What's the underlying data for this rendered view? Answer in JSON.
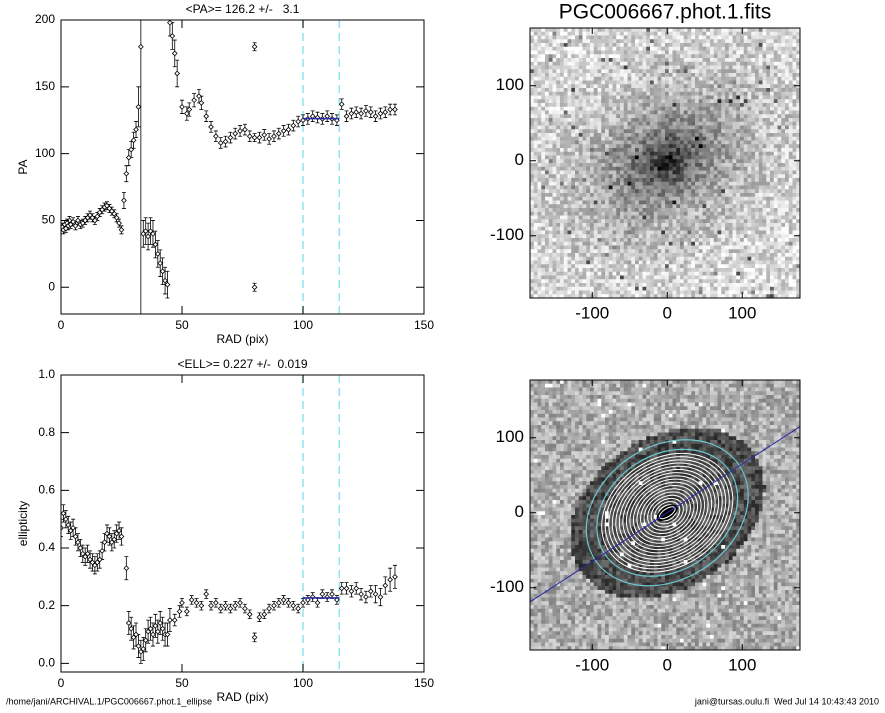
{
  "chart_data": [
    {
      "type": "errorbar",
      "title": "<PA>= 126.2 +/-   3.1",
      "xlabel": "RAD (pix)",
      "ylabel": "PA",
      "x": [
        0.5,
        1,
        1.5,
        2,
        2.5,
        3,
        3.5,
        4,
        5,
        6,
        7,
        8,
        9,
        10,
        11,
        12,
        13,
        14,
        15,
        16,
        17,
        18,
        19,
        20,
        21,
        22,
        23,
        24,
        25,
        26,
        27,
        28,
        29,
        30,
        31,
        32,
        33,
        34,
        35,
        36,
        37,
        38,
        39,
        40,
        41,
        42,
        43,
        44,
        45,
        46,
        47,
        48,
        50,
        52,
        53,
        55,
        57,
        58,
        60,
        62,
        64,
        66,
        68,
        70,
        72,
        74,
        76,
        78,
        80,
        80,
        80,
        82,
        84,
        86,
        88,
        90,
        92,
        94,
        96,
        98,
        100,
        102,
        104,
        106,
        108,
        110,
        112,
        114,
        116,
        118,
        120,
        122,
        124,
        126,
        128,
        130,
        132,
        134,
        136,
        138
      ],
      "values": [
        45,
        43,
        47,
        44,
        48,
        46,
        50,
        47,
        49,
        46,
        50,
        47,
        48,
        50,
        52,
        54,
        52,
        50,
        53,
        56,
        58,
        60,
        61,
        59,
        57,
        55,
        52,
        48,
        43,
        65,
        85,
        97,
        103,
        110,
        118,
        135,
        180,
        40,
        42,
        38,
        42,
        40,
        32,
        25,
        18,
        12,
        5,
        2,
        198,
        188,
        175,
        160,
        135,
        130,
        133,
        140,
        143,
        138,
        128,
        120,
        113,
        108,
        109,
        112,
        115,
        117,
        118,
        113,
        180,
        0,
        112,
        112,
        114,
        111,
        113,
        115,
        117,
        118,
        121,
        124,
        125,
        126,
        128,
        127,
        126,
        128,
        126,
        125,
        137,
        128,
        130,
        131,
        130,
        132,
        131,
        128,
        130,
        131,
        133,
        133
      ],
      "errors": [
        3,
        3,
        3,
        3,
        3,
        3,
        3,
        3,
        3,
        3,
        3,
        3,
        3,
        3,
        3,
        3,
        3,
        3,
        3,
        3,
        3,
        3,
        3,
        3,
        3,
        3,
        3,
        3,
        3,
        6,
        6,
        6,
        6,
        6,
        6,
        15,
        200,
        10,
        10,
        10,
        10,
        10,
        10,
        10,
        10,
        10,
        10,
        10,
        10,
        10,
        10,
        10,
        5,
        5,
        5,
        5,
        5,
        5,
        4,
        4,
        4,
        4,
        4,
        4,
        4,
        4,
        4,
        4,
        3,
        3,
        3,
        4,
        4,
        4,
        4,
        4,
        4,
        4,
        4,
        4,
        4,
        4,
        4,
        4,
        4,
        4,
        4,
        4,
        4,
        4,
        4,
        4,
        4,
        4,
        4,
        4,
        4,
        4,
        4,
        4
      ],
      "xlim": [
        0,
        150
      ],
      "ylim": [
        -20,
        200
      ],
      "xticks": [
        0,
        50,
        100,
        150
      ],
      "yticks": [
        0,
        50,
        100,
        150,
        200
      ],
      "vlines": [
        100,
        115
      ],
      "vline_color": "#8fe6f0",
      "fit_value": 126.2,
      "fit_range": [
        100,
        115
      ],
      "fit_color": "#2a2aa8",
      "color": "#000000"
    },
    {
      "type": "errorbar",
      "title": "<ELL>= 0.227 +/-  0.019",
      "xlabel": "RAD (pix)",
      "ylabel": "ellipticity",
      "x": [
        0,
        1,
        2,
        3,
        4,
        5,
        6,
        7,
        8,
        9,
        10,
        11,
        12,
        13,
        14,
        15,
        16,
        17,
        18,
        19,
        20,
        21,
        22,
        23,
        24,
        25,
        27,
        28,
        29,
        30,
        31,
        32,
        33,
        34,
        35,
        36,
        37,
        38,
        39,
        40,
        41,
        42,
        43,
        44,
        45,
        47,
        49,
        50,
        52,
        54,
        56,
        58,
        60,
        62,
        64,
        66,
        68,
        70,
        72,
        74,
        76,
        78,
        80,
        82,
        84,
        86,
        88,
        90,
        92,
        94,
        96,
        98,
        100,
        102,
        104,
        106,
        108,
        110,
        112,
        114,
        116,
        118,
        120,
        122,
        124,
        126,
        128,
        130,
        132,
        134,
        136,
        138
      ],
      "values": [
        0.47,
        0.52,
        0.5,
        0.48,
        0.46,
        0.47,
        0.44,
        0.42,
        0.4,
        0.38,
        0.37,
        0.38,
        0.36,
        0.35,
        0.34,
        0.35,
        0.36,
        0.39,
        0.42,
        0.45,
        0.44,
        0.42,
        0.43,
        0.45,
        0.46,
        0.44,
        0.33,
        0.14,
        0.12,
        0.09,
        0.1,
        0.06,
        0.04,
        0.05,
        0.08,
        0.11,
        0.12,
        0.1,
        0.13,
        0.11,
        0.14,
        0.12,
        0.1,
        0.1,
        0.15,
        0.15,
        0.18,
        0.21,
        0.18,
        0.22,
        0.21,
        0.2,
        0.24,
        0.2,
        0.21,
        0.19,
        0.2,
        0.19,
        0.2,
        0.21,
        0.19,
        0.17,
        0.09,
        0.16,
        0.17,
        0.19,
        0.2,
        0.21,
        0.22,
        0.21,
        0.2,
        0.19,
        0.21,
        0.22,
        0.23,
        0.21,
        0.24,
        0.23,
        0.24,
        0.22,
        0.26,
        0.26,
        0.25,
        0.26,
        0.24,
        0.23,
        0.25,
        0.24,
        0.23,
        0.27,
        0.29,
        0.3
      ],
      "errors": [
        0.03,
        0.03,
        0.03,
        0.03,
        0.03,
        0.03,
        0.03,
        0.03,
        0.03,
        0.03,
        0.03,
        0.03,
        0.03,
        0.03,
        0.03,
        0.03,
        0.03,
        0.03,
        0.03,
        0.03,
        0.03,
        0.03,
        0.03,
        0.03,
        0.03,
        0.03,
        0.04,
        0.04,
        0.04,
        0.04,
        0.04,
        0.04,
        0.04,
        0.04,
        0.04,
        0.04,
        0.04,
        0.04,
        0.04,
        0.04,
        0.04,
        0.04,
        0.04,
        0.04,
        0.04,
        0.02,
        0.02,
        0.015,
        0.015,
        0.015,
        0.015,
        0.015,
        0.015,
        0.015,
        0.015,
        0.015,
        0.015,
        0.015,
        0.015,
        0.015,
        0.015,
        0.015,
        0.015,
        0.015,
        0.015,
        0.015,
        0.015,
        0.015,
        0.015,
        0.015,
        0.015,
        0.015,
        0.015,
        0.015,
        0.015,
        0.015,
        0.015,
        0.015,
        0.015,
        0.015,
        0.02,
        0.02,
        0.02,
        0.02,
        0.02,
        0.02,
        0.02,
        0.03,
        0.03,
        0.03,
        0.04,
        0.04
      ],
      "xlim": [
        0,
        150
      ],
      "ylim": [
        -0.03,
        1.0
      ],
      "xticks": [
        0,
        50,
        100,
        150
      ],
      "yticks": [
        {
          "value": 0,
          "label": "0.0"
        },
        {
          "value": 0.2,
          "label": "0.2"
        },
        {
          "value": 0.4,
          "label": "0.4"
        },
        {
          "value": 0.6,
          "label": "0.6"
        },
        {
          "value": 0.8,
          "label": "0.8"
        },
        {
          "value": 1,
          "label": "1.0"
        }
      ],
      "vlines": [
        100,
        115
      ],
      "vline_color": "#8fe6f0",
      "fit_value": 0.227,
      "fit_range": [
        100,
        115
      ],
      "fit_color": "#2a2aa8",
      "color": "#000000"
    },
    {
      "type": "image",
      "title": "PGC006667.phot.1.fits",
      "xlim": [
        -183,
        177
      ],
      "ylim": [
        -183,
        177
      ],
      "xticks": [
        -100,
        0,
        100
      ],
      "yticks": [
        -100,
        0,
        100
      ]
    },
    {
      "type": "image",
      "xlim": [
        -183,
        177
      ],
      "ylim": [
        -183,
        177
      ],
      "xticks": [
        -100,
        0,
        100
      ],
      "yticks": [
        -100,
        0,
        100
      ]
    }
  ],
  "footer": {
    "path": "/home/jani/ARCHIVAL.1/PGC006667.phot.1_ellipse",
    "stamp": "jani@tursas.oulu.fi  Wed Jul 14 10:43:43 2010"
  }
}
